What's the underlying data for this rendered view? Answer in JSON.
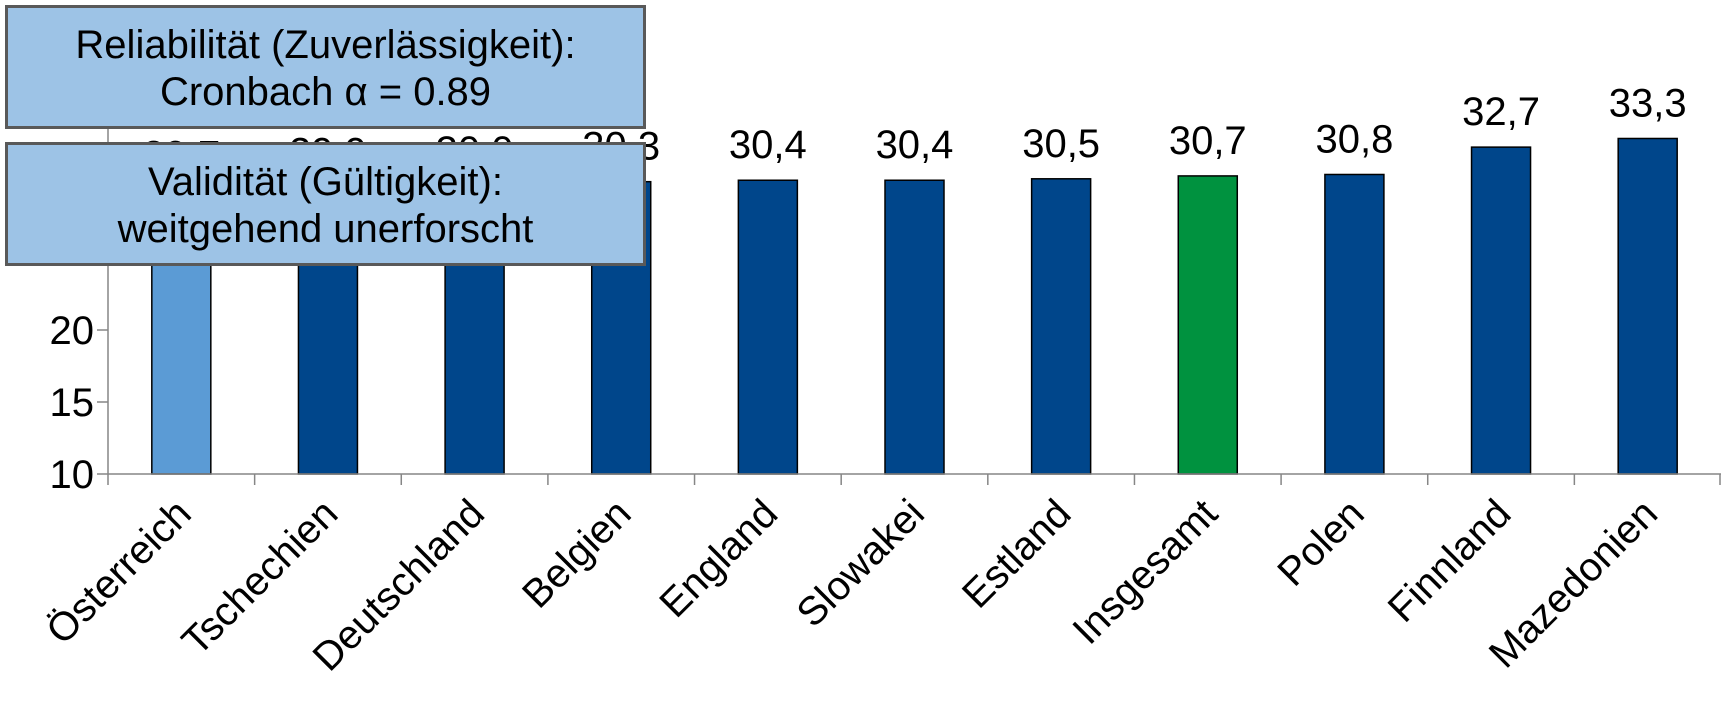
{
  "chart_data": {
    "type": "bar",
    "categories": [
      "Österreich",
      "Tschechien",
      "Deutschland",
      "Belgien",
      "England",
      "Slowakei",
      "Estland",
      "Insgesamt",
      "Polen",
      "Finnland",
      "Mazedonien"
    ],
    "values": [
      29.7,
      29.9,
      30.0,
      30.3,
      30.4,
      30.4,
      30.5,
      30.7,
      30.8,
      32.7,
      33.3
    ],
    "value_labels": [
      "29,7",
      "29,9",
      "30,0",
      "30,3",
      "30,4",
      "30,4",
      "30,5",
      "30,7",
      "30,8",
      "32,7",
      "33,3"
    ],
    "bar_colors": [
      "#5b9bd5",
      "#00468b",
      "#00468b",
      "#00468b",
      "#00468b",
      "#00468b",
      "#00468b",
      "#00923f",
      "#00468b",
      "#00468b",
      "#00468b"
    ],
    "yticks": [
      10,
      15,
      20
    ],
    "ylim": [
      10,
      35
    ],
    "grid": false,
    "legend": "none"
  },
  "callouts": {
    "reliability": {
      "line1": "Reliabilität (Zuverlässigkeit):",
      "line2": "Cronbach α = 0.89",
      "color": "#9dc3e6"
    },
    "validity": {
      "line1": "Validität (Gültigkeit):",
      "line2": "weitgehend unerforscht",
      "color": "#9dc3e6"
    }
  }
}
